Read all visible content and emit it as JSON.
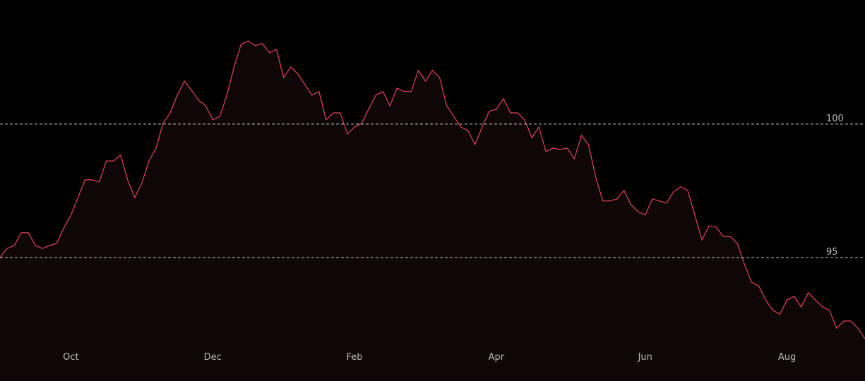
{
  "chart_data": {
    "type": "line",
    "categories": [
      null,
      null,
      null,
      null,
      null,
      null,
      null,
      null,
      null,
      null,
      "Oct",
      null,
      null,
      null,
      null,
      null,
      null,
      null,
      null,
      null,
      null,
      null,
      null,
      null,
      null,
      null,
      null,
      null,
      null,
      null,
      "Dec",
      null,
      null,
      null,
      null,
      null,
      null,
      null,
      null,
      null,
      null,
      null,
      null,
      null,
      null,
      null,
      null,
      null,
      null,
      null,
      "Feb",
      null,
      null,
      null,
      null,
      null,
      null,
      null,
      null,
      null,
      null,
      null,
      null,
      null,
      null,
      null,
      null,
      null,
      null,
      null,
      "Apr",
      null,
      null,
      null,
      null,
      null,
      null,
      null,
      null,
      null,
      null,
      null,
      null,
      null,
      null,
      null,
      null,
      null,
      null,
      null,
      null,
      "Jun",
      null,
      null,
      null,
      null,
      null,
      null,
      null,
      null,
      null,
      null,
      null,
      null,
      null,
      null,
      null,
      null,
      null,
      null,
      null,
      "Aug",
      null,
      null,
      null,
      null,
      null,
      null,
      null,
      null,
      null,
      null,
      null
    ],
    "values": [
      95.0,
      95.34,
      95.45,
      95.93,
      95.93,
      95.45,
      95.34,
      95.45,
      95.53,
      96.11,
      96.59,
      97.25,
      97.91,
      97.91,
      97.83,
      98.62,
      98.62,
      98.84,
      97.91,
      97.25,
      97.78,
      98.62,
      99.1,
      100.03,
      100.42,
      101.08,
      101.61,
      101.27,
      100.9,
      100.69,
      100.16,
      100.29,
      101.08,
      102.14,
      102.99,
      103.12,
      102.94,
      103.02,
      102.67,
      102.8,
      101.75,
      102.14,
      101.88,
      101.48,
      101.08,
      101.22,
      100.16,
      100.42,
      100.42,
      99.63,
      99.89,
      100.03,
      100.56,
      101.08,
      101.22,
      100.69,
      101.35,
      101.22,
      101.22,
      102.01,
      101.61,
      102.01,
      101.75,
      100.69,
      100.29,
      99.89,
      99.76,
      99.23,
      99.89,
      100.48,
      100.56,
      100.95,
      100.42,
      100.42,
      100.16,
      99.5,
      99.89,
      98.97,
      99.1,
      99.05,
      99.1,
      98.7,
      99.58,
      99.23,
      98.04,
      97.12,
      97.12,
      97.2,
      97.51,
      96.98,
      96.72,
      96.59,
      97.2,
      97.12,
      97.04,
      97.46,
      97.65,
      97.51,
      96.59,
      95.66,
      96.19,
      96.14,
      95.79,
      95.79,
      95.53,
      94.74,
      94.07,
      93.94,
      93.41,
      93.02,
      92.88,
      93.41,
      93.54,
      93.15,
      93.68,
      93.41,
      93.15,
      93.02,
      92.35,
      92.62,
      92.62,
      92.35,
      91.96
    ],
    "color": "#e8435a",
    "ylim": [
      91.8,
      104.65
    ],
    "yticks": [
      95,
      100
    ],
    "grid": true
  }
}
